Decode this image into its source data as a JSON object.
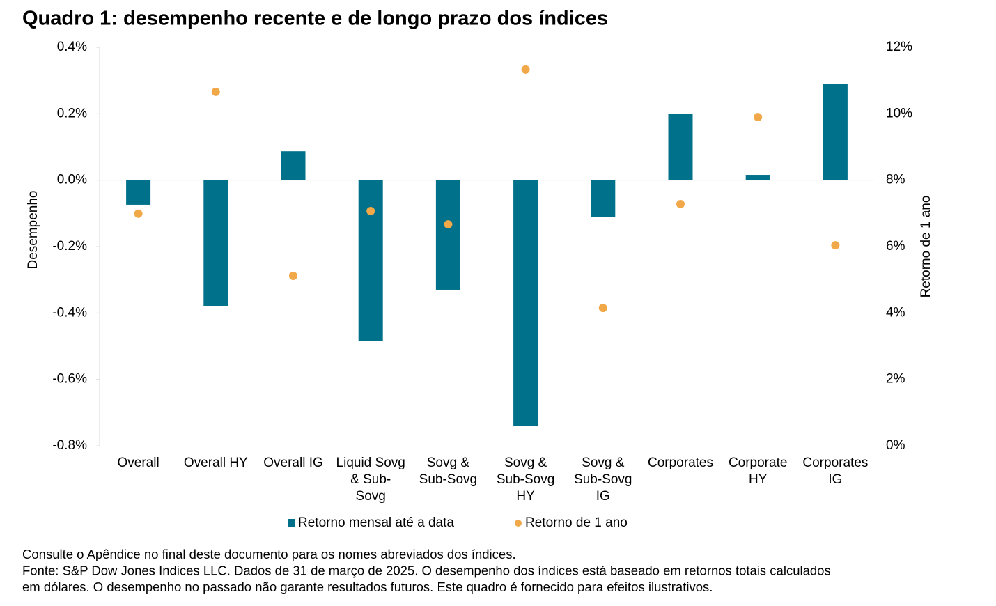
{
  "chart_data": {
    "type": "bar+scatter",
    "title": "Quadro 1: desempenho recente e de longo prazo dos índices",
    "y_label": "Desempenho",
    "y2_label": "Retorno de 1 ano",
    "categories": [
      "Overall",
      "Overall HY",
      "Overall IG",
      "Liquid Sovg\n& Sub-\nSovg",
      "Sovg &\nSub-Sovg",
      "Sovg &\nSub-Sovg\nHY",
      "Sovg &\nSub-Sovg\nIG",
      "Corporates",
      "Corporate\nHY",
      "Corporates\nIG"
    ],
    "series": [
      {
        "name": "Retorno mensal até a data",
        "type": "bar",
        "color": "#00718a",
        "values": [
          -0.074,
          -0.38,
          0.087,
          -0.485,
          -0.33,
          -0.74,
          -0.11,
          0.2,
          0.016,
          0.29
        ]
      },
      {
        "name": "Retorno de 1 ano",
        "type": "scatter",
        "axis": "y2",
        "color": "#f0a848",
        "values": [
          6.99,
          10.66,
          5.12,
          7.07,
          6.67,
          11.33,
          4.15,
          7.28,
          9.9,
          6.04
        ]
      }
    ],
    "ylim": [
      -0.8,
      0.4
    ],
    "yticks": [
      {
        "value": -0.8,
        "label": "-0.8%"
      },
      {
        "value": -0.6,
        "label": "-0.6%"
      },
      {
        "value": -0.4,
        "label": "-0.4%"
      },
      {
        "value": -0.2,
        "label": "-0.2%"
      },
      {
        "value": 0,
        "label": "0.0%"
      },
      {
        "value": 0.2,
        "label": "0.2%"
      },
      {
        "value": 0.4,
        "label": "0.4%"
      }
    ],
    "y2lim": [
      0,
      12
    ],
    "y2ticks": [
      {
        "value": 0,
        "label": "0%"
      },
      {
        "value": 2,
        "label": "2%"
      },
      {
        "value": 4,
        "label": "4%"
      },
      {
        "value": 6,
        "label": "6%"
      },
      {
        "value": 8,
        "label": "8%"
      },
      {
        "value": 10,
        "label": "10%"
      },
      {
        "value": 12,
        "label": "12%"
      }
    ],
    "legend": "bottom",
    "notes": [
      "Consulte o Apêndice no final deste documento para os nomes abreviados dos índices.",
      "Fonte: S&P Dow Jones Indices LLC. Dados de 31 de março de 2025. O desempenho dos índices está baseado em retornos totais calculados",
      "em dólares. O desempenho no passado não garante resultados futuros. Este quadro é fornecido para efeitos ilustrativos."
    ]
  }
}
